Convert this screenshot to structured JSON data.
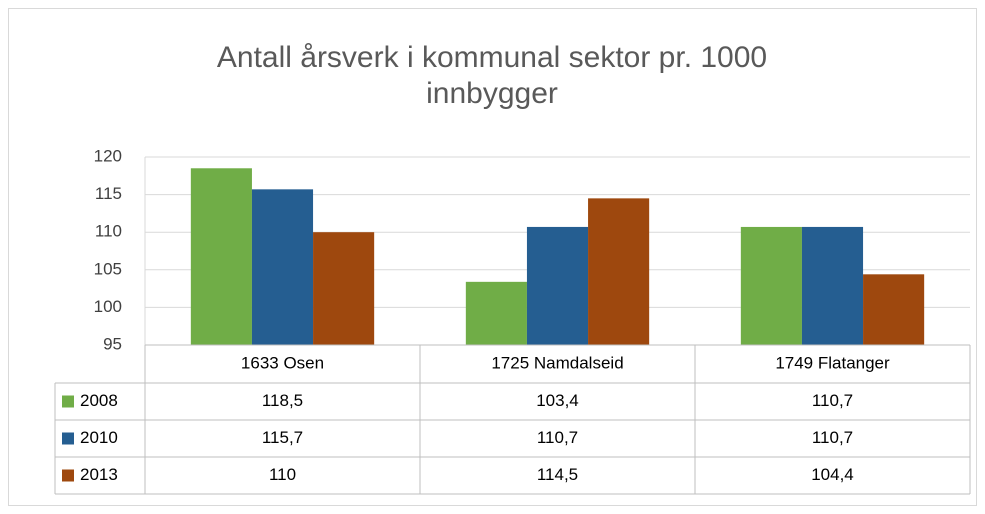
{
  "chart_data": {
    "type": "bar",
    "title": "Antall årsverk i kommunal sektor pr. 1000 innbygger",
    "categories": [
      "1633 Osen",
      "1725 Namdalseid",
      "1749 Flatanger"
    ],
    "series": [
      {
        "name": "2008",
        "color": "#70ad47",
        "values": [
          118.5,
          103.4,
          110.7
        ],
        "value_labels": [
          "118,5",
          "103,4",
          "110,7"
        ]
      },
      {
        "name": "2010",
        "color": "#255e91",
        "values": [
          115.7,
          110.7,
          110.7
        ],
        "value_labels": [
          "115,7",
          "110,7",
          "110,7"
        ]
      },
      {
        "name": "2013",
        "color": "#9e480e",
        "values": [
          110,
          114.5,
          104.4
        ],
        "value_labels": [
          "110",
          "114,5",
          "104,4"
        ]
      }
    ],
    "ylim": [
      95,
      120
    ],
    "yticks": [
      95,
      100,
      105,
      110,
      115,
      120
    ],
    "grid": true,
    "data_table": true
  }
}
